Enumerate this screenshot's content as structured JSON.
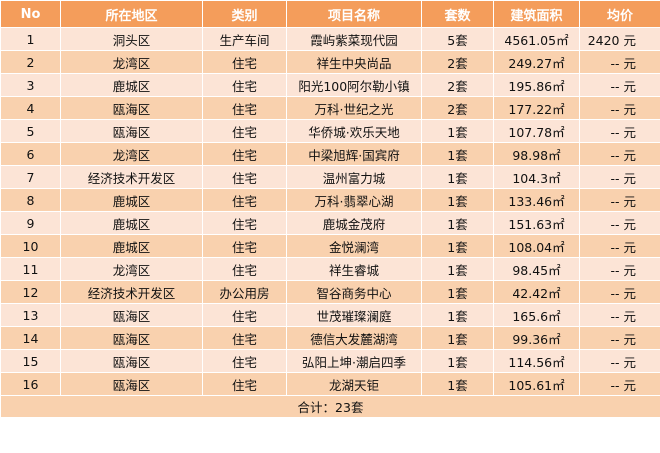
{
  "headers": {
    "no": "No",
    "district": "所在地区",
    "type": "类别",
    "project": "项目名称",
    "sets": "套数",
    "area": "建筑面积",
    "price": "均价"
  },
  "rows": [
    {
      "no": "1",
      "district": "洞头区",
      "type": "生产车间",
      "project": "霞屿紫菜现代园",
      "sets": "5套",
      "area": "4561.05㎡",
      "price": "2420 元"
    },
    {
      "no": "2",
      "district": "龙湾区",
      "type": "住宅",
      "project": "祥生中央尚品",
      "sets": "2套",
      "area": "249.27㎡",
      "price": "-- 元"
    },
    {
      "no": "3",
      "district": "鹿城区",
      "type": "住宅",
      "project": "阳光100阿尔勒小镇",
      "sets": "2套",
      "area": "195.86㎡",
      "price": "-- 元"
    },
    {
      "no": "4",
      "district": "瓯海区",
      "type": "住宅",
      "project": "万科·世纪之光",
      "sets": "2套",
      "area": "177.22㎡",
      "price": "-- 元"
    },
    {
      "no": "5",
      "district": "瓯海区",
      "type": "住宅",
      "project": "华侨城·欢乐天地",
      "sets": "1套",
      "area": "107.78㎡",
      "price": "-- 元"
    },
    {
      "no": "6",
      "district": "龙湾区",
      "type": "住宅",
      "project": "中梁旭辉·国宾府",
      "sets": "1套",
      "area": "98.98㎡",
      "price": "-- 元"
    },
    {
      "no": "7",
      "district": "经济技术开发区",
      "type": "住宅",
      "project": "温州富力城",
      "sets": "1套",
      "area": "104.3㎡",
      "price": "-- 元"
    },
    {
      "no": "8",
      "district": "鹿城区",
      "type": "住宅",
      "project": "万科·翡翠心湖",
      "sets": "1套",
      "area": "133.46㎡",
      "price": "-- 元"
    },
    {
      "no": "9",
      "district": "鹿城区",
      "type": "住宅",
      "project": "鹿城金茂府",
      "sets": "1套",
      "area": "151.63㎡",
      "price": "-- 元"
    },
    {
      "no": "10",
      "district": "鹿城区",
      "type": "住宅",
      "project": "金悦澜湾",
      "sets": "1套",
      "area": "108.04㎡",
      "price": "-- 元"
    },
    {
      "no": "11",
      "district": "龙湾区",
      "type": "住宅",
      "project": "祥生睿城",
      "sets": "1套",
      "area": "98.45㎡",
      "price": "-- 元"
    },
    {
      "no": "12",
      "district": "经济技术开发区",
      "type": "办公用房",
      "project": "智谷商务中心",
      "sets": "1套",
      "area": "42.42㎡",
      "price": "-- 元"
    },
    {
      "no": "13",
      "district": "瓯海区",
      "type": "住宅",
      "project": "世茂璀璨澜庭",
      "sets": "1套",
      "area": "165.6㎡",
      "price": "-- 元"
    },
    {
      "no": "14",
      "district": "瓯海区",
      "type": "住宅",
      "project": "德信大发麓湖湾",
      "sets": "1套",
      "area": "99.36㎡",
      "price": "-- 元"
    },
    {
      "no": "15",
      "district": "瓯海区",
      "type": "住宅",
      "project": "弘阳上坤·潮启四季",
      "sets": "1套",
      "area": "114.56㎡",
      "price": "-- 元"
    },
    {
      "no": "16",
      "district": "瓯海区",
      "type": "住宅",
      "project": "龙湖天钜",
      "sets": "1套",
      "area": "105.61㎡",
      "price": "-- 元"
    }
  ],
  "total": "合计：23套",
  "colors": {
    "header_bg": "#f49d5b",
    "row_light": "#fce4d6",
    "row_dark": "#f9d1ae"
  }
}
